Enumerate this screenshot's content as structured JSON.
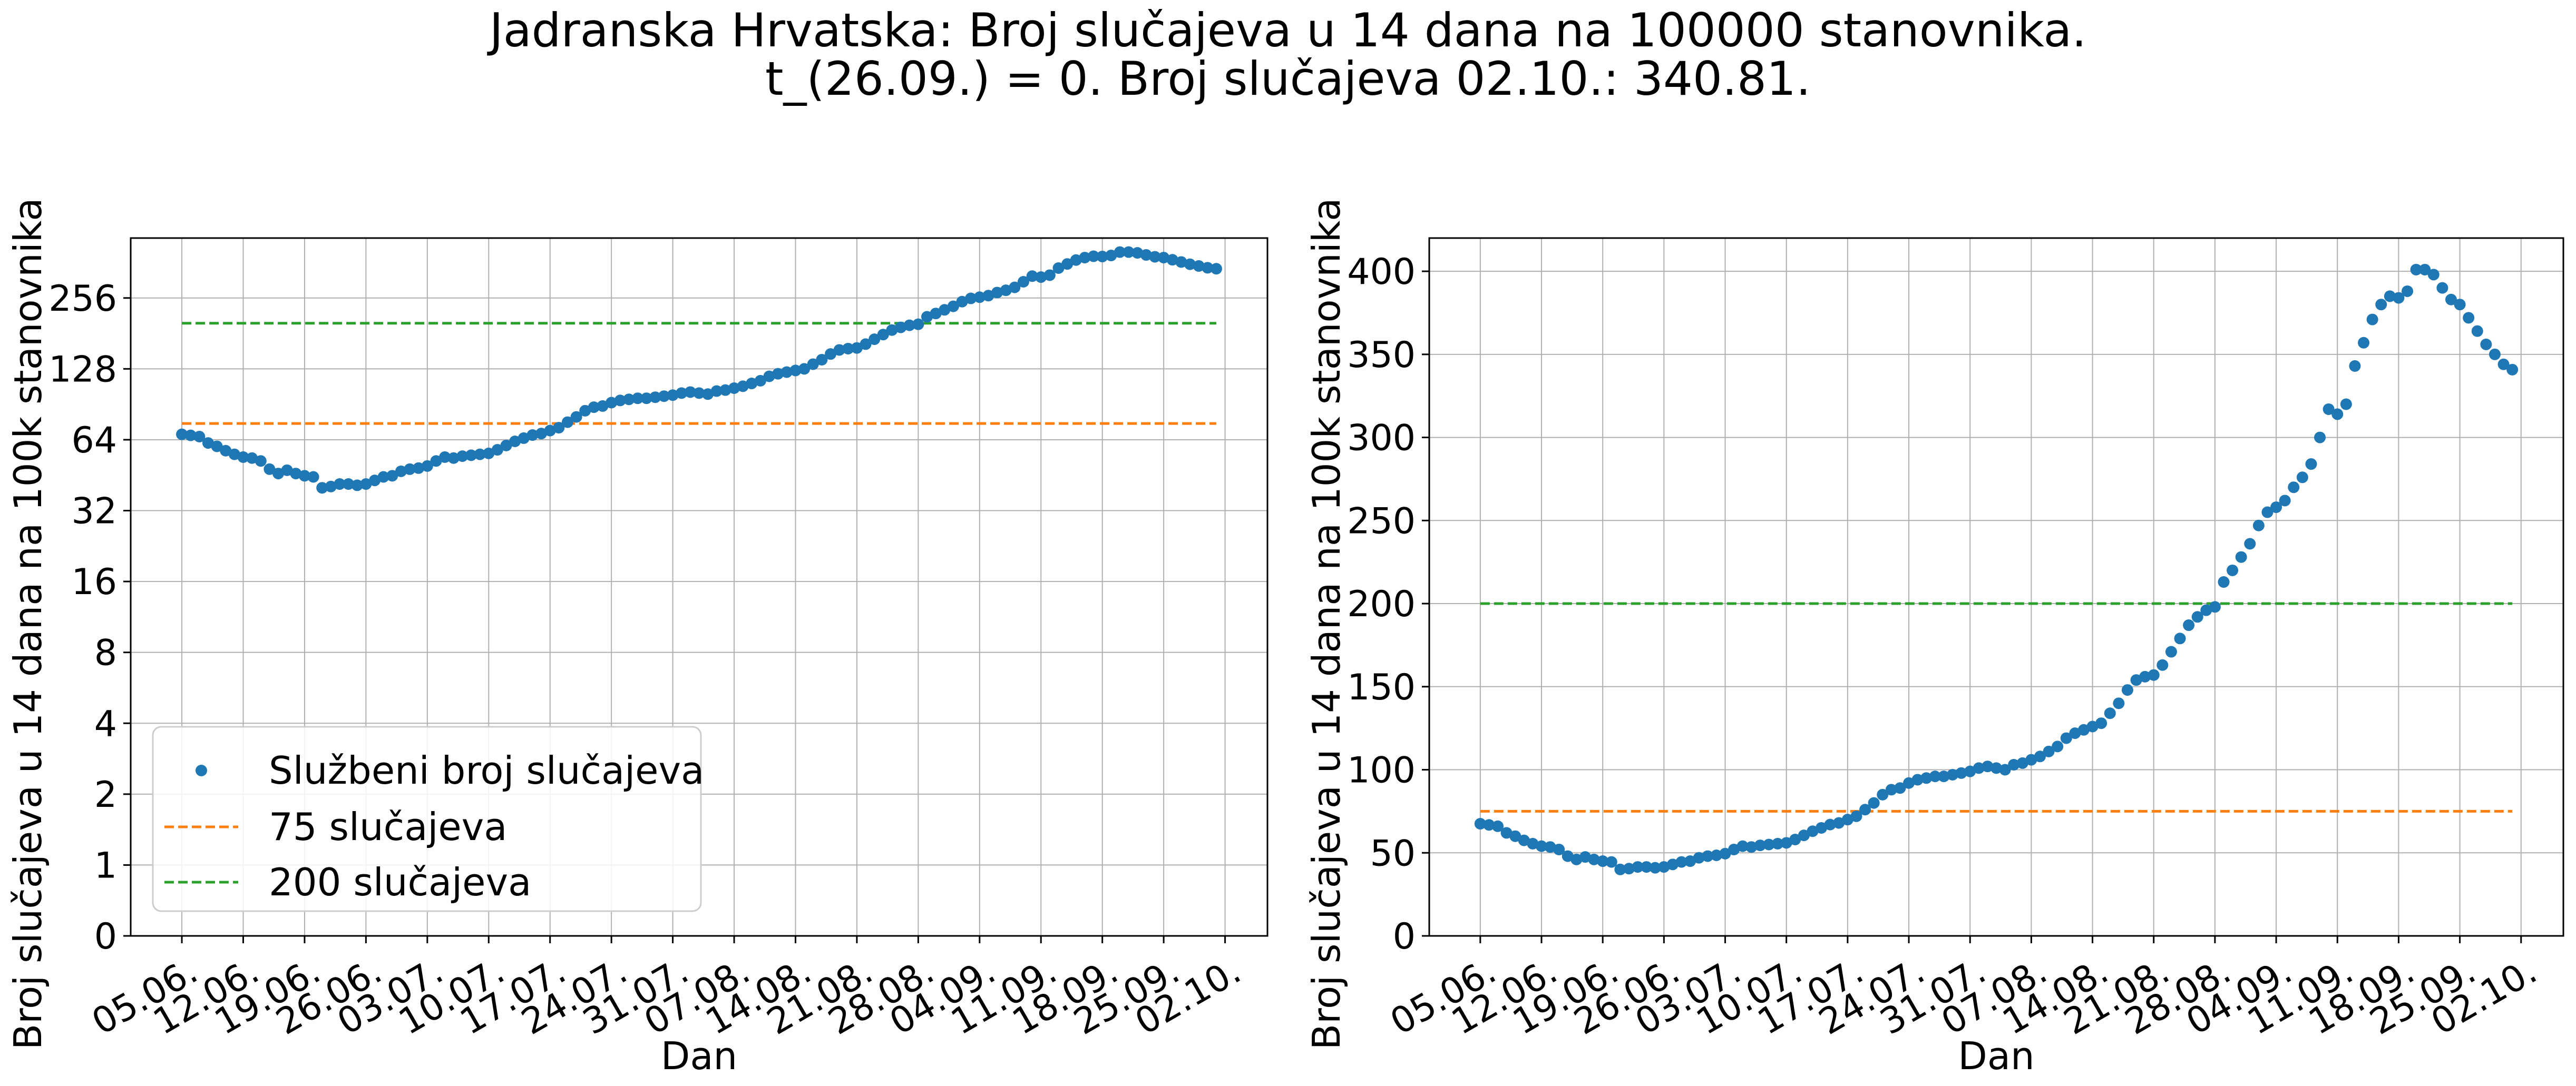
{
  "figure": {
    "title_line1": "Jadranska Hrvatska: Broj slučajeva u 14 dana na 100000 stanovnika.",
    "title_line2": "t_(26.09.) = 0. Broj slučajeva 02.10.: 340.81."
  },
  "legend": {
    "labels": [
      "Službeni broj slučajeva",
      "75 slučajeva",
      "200 slučajeva"
    ]
  },
  "colors": {
    "points": "#1f77b4",
    "line75": "#ff7f0e",
    "line200": "#2ca02c",
    "grid": "#b0b0b0"
  },
  "chart_data": [
    {
      "type": "scatter",
      "scale": "log2",
      "title": "",
      "xlabel": "Dan",
      "ylabel": "Broj slučajeva u 14 dana na 100k stanovnika",
      "x_tick_labels": [
        "05.06.",
        "12.06.",
        "19.06.",
        "26.06.",
        "03.07.",
        "10.07.",
        "17.07.",
        "24.07.",
        "31.07.",
        "07.08.",
        "14.08.",
        "21.08.",
        "28.08.",
        "04.09.",
        "11.09.",
        "18.09.",
        "25.09.",
        "02.10."
      ],
      "y_tick_labels": [
        "0",
        "1",
        "2",
        "4",
        "8",
        "16",
        "32",
        "64",
        "128",
        "256"
      ],
      "grid": true,
      "legend_position": "lower-left",
      "series": [
        {
          "name": "Službeni broj slučajeva",
          "kind": "points",
          "values": []
        },
        {
          "name": "75 slučajeva",
          "kind": "dashed-line",
          "value": 75
        },
        {
          "name": "200 slučajeva",
          "kind": "dashed-line",
          "value": 200
        }
      ]
    },
    {
      "type": "scatter",
      "scale": "linear",
      "title": "",
      "xlabel": "Dan",
      "ylabel": "Broj slučajeva u 14 dana na 100k stanovnika",
      "x_tick_labels": [
        "05.06.",
        "12.06.",
        "19.06.",
        "26.06.",
        "03.07.",
        "10.07.",
        "17.07.",
        "24.07.",
        "31.07.",
        "07.08.",
        "14.08.",
        "21.08.",
        "28.08.",
        "04.09.",
        "11.09.",
        "18.09.",
        "25.09.",
        "02.10."
      ],
      "y_ticks": [
        0,
        50,
        100,
        150,
        200,
        250,
        300,
        350,
        400
      ],
      "ylim": [
        0,
        420
      ],
      "grid": true,
      "series": [
        {
          "name": "Službeni broj slučajeva",
          "kind": "points",
          "values": []
        },
        {
          "name": "75 slučajeva",
          "kind": "dashed-line",
          "value": 75
        },
        {
          "name": "200 slučajeva",
          "kind": "dashed-line",
          "value": 200
        }
      ]
    }
  ],
  "daily_values_from_05_06_to_02_10": [
    67.5,
    66.8,
    66.0,
    62.0,
    60.0,
    57.5,
    55.5,
    54.0,
    53.5,
    52.0,
    48.0,
    46.0,
    47.5,
    46.0,
    45.0,
    44.5,
    40.0,
    40.5,
    41.5,
    41.5,
    41.0,
    41.5,
    43.0,
    44.5,
    45.0,
    47.0,
    48.0,
    48.5,
    49.5,
    52.0,
    54.0,
    53.5,
    54.5,
    55.0,
    55.5,
    56.0,
    58.0,
    60.5,
    63.0,
    65.0,
    67.0,
    68.0,
    70.0,
    72.0,
    76.0,
    80.0,
    85.0,
    88.0,
    89.0,
    92.0,
    94.0,
    95.0,
    96.0,
    96.0,
    97.0,
    98.0,
    99.0,
    101.0,
    102.0,
    101.0,
    100.0,
    103.0,
    104.0,
    106.0,
    108.0,
    111.0,
    114.0,
    119.0,
    122.0,
    124.0,
    126.0,
    128.0,
    134.0,
    140.0,
    148.0,
    154.0,
    156.0,
    157.0,
    163.0,
    171.0,
    179.0,
    187.0,
    192.0,
    196.0,
    198.0,
    213.0,
    220.0,
    228.0,
    236.0,
    247.0,
    255.0,
    258.0,
    262.0,
    270.0,
    276.0,
    284.0,
    300.0,
    317.0,
    314.0,
    320.0,
    343.0,
    357.0,
    371.0,
    380.0,
    385.0,
    384.0,
    388.0,
    401.0,
    401.0,
    398.0,
    390.0,
    383.0,
    380.0,
    372.0,
    364.0,
    356.0,
    350.0,
    344.0,
    340.81
  ]
}
